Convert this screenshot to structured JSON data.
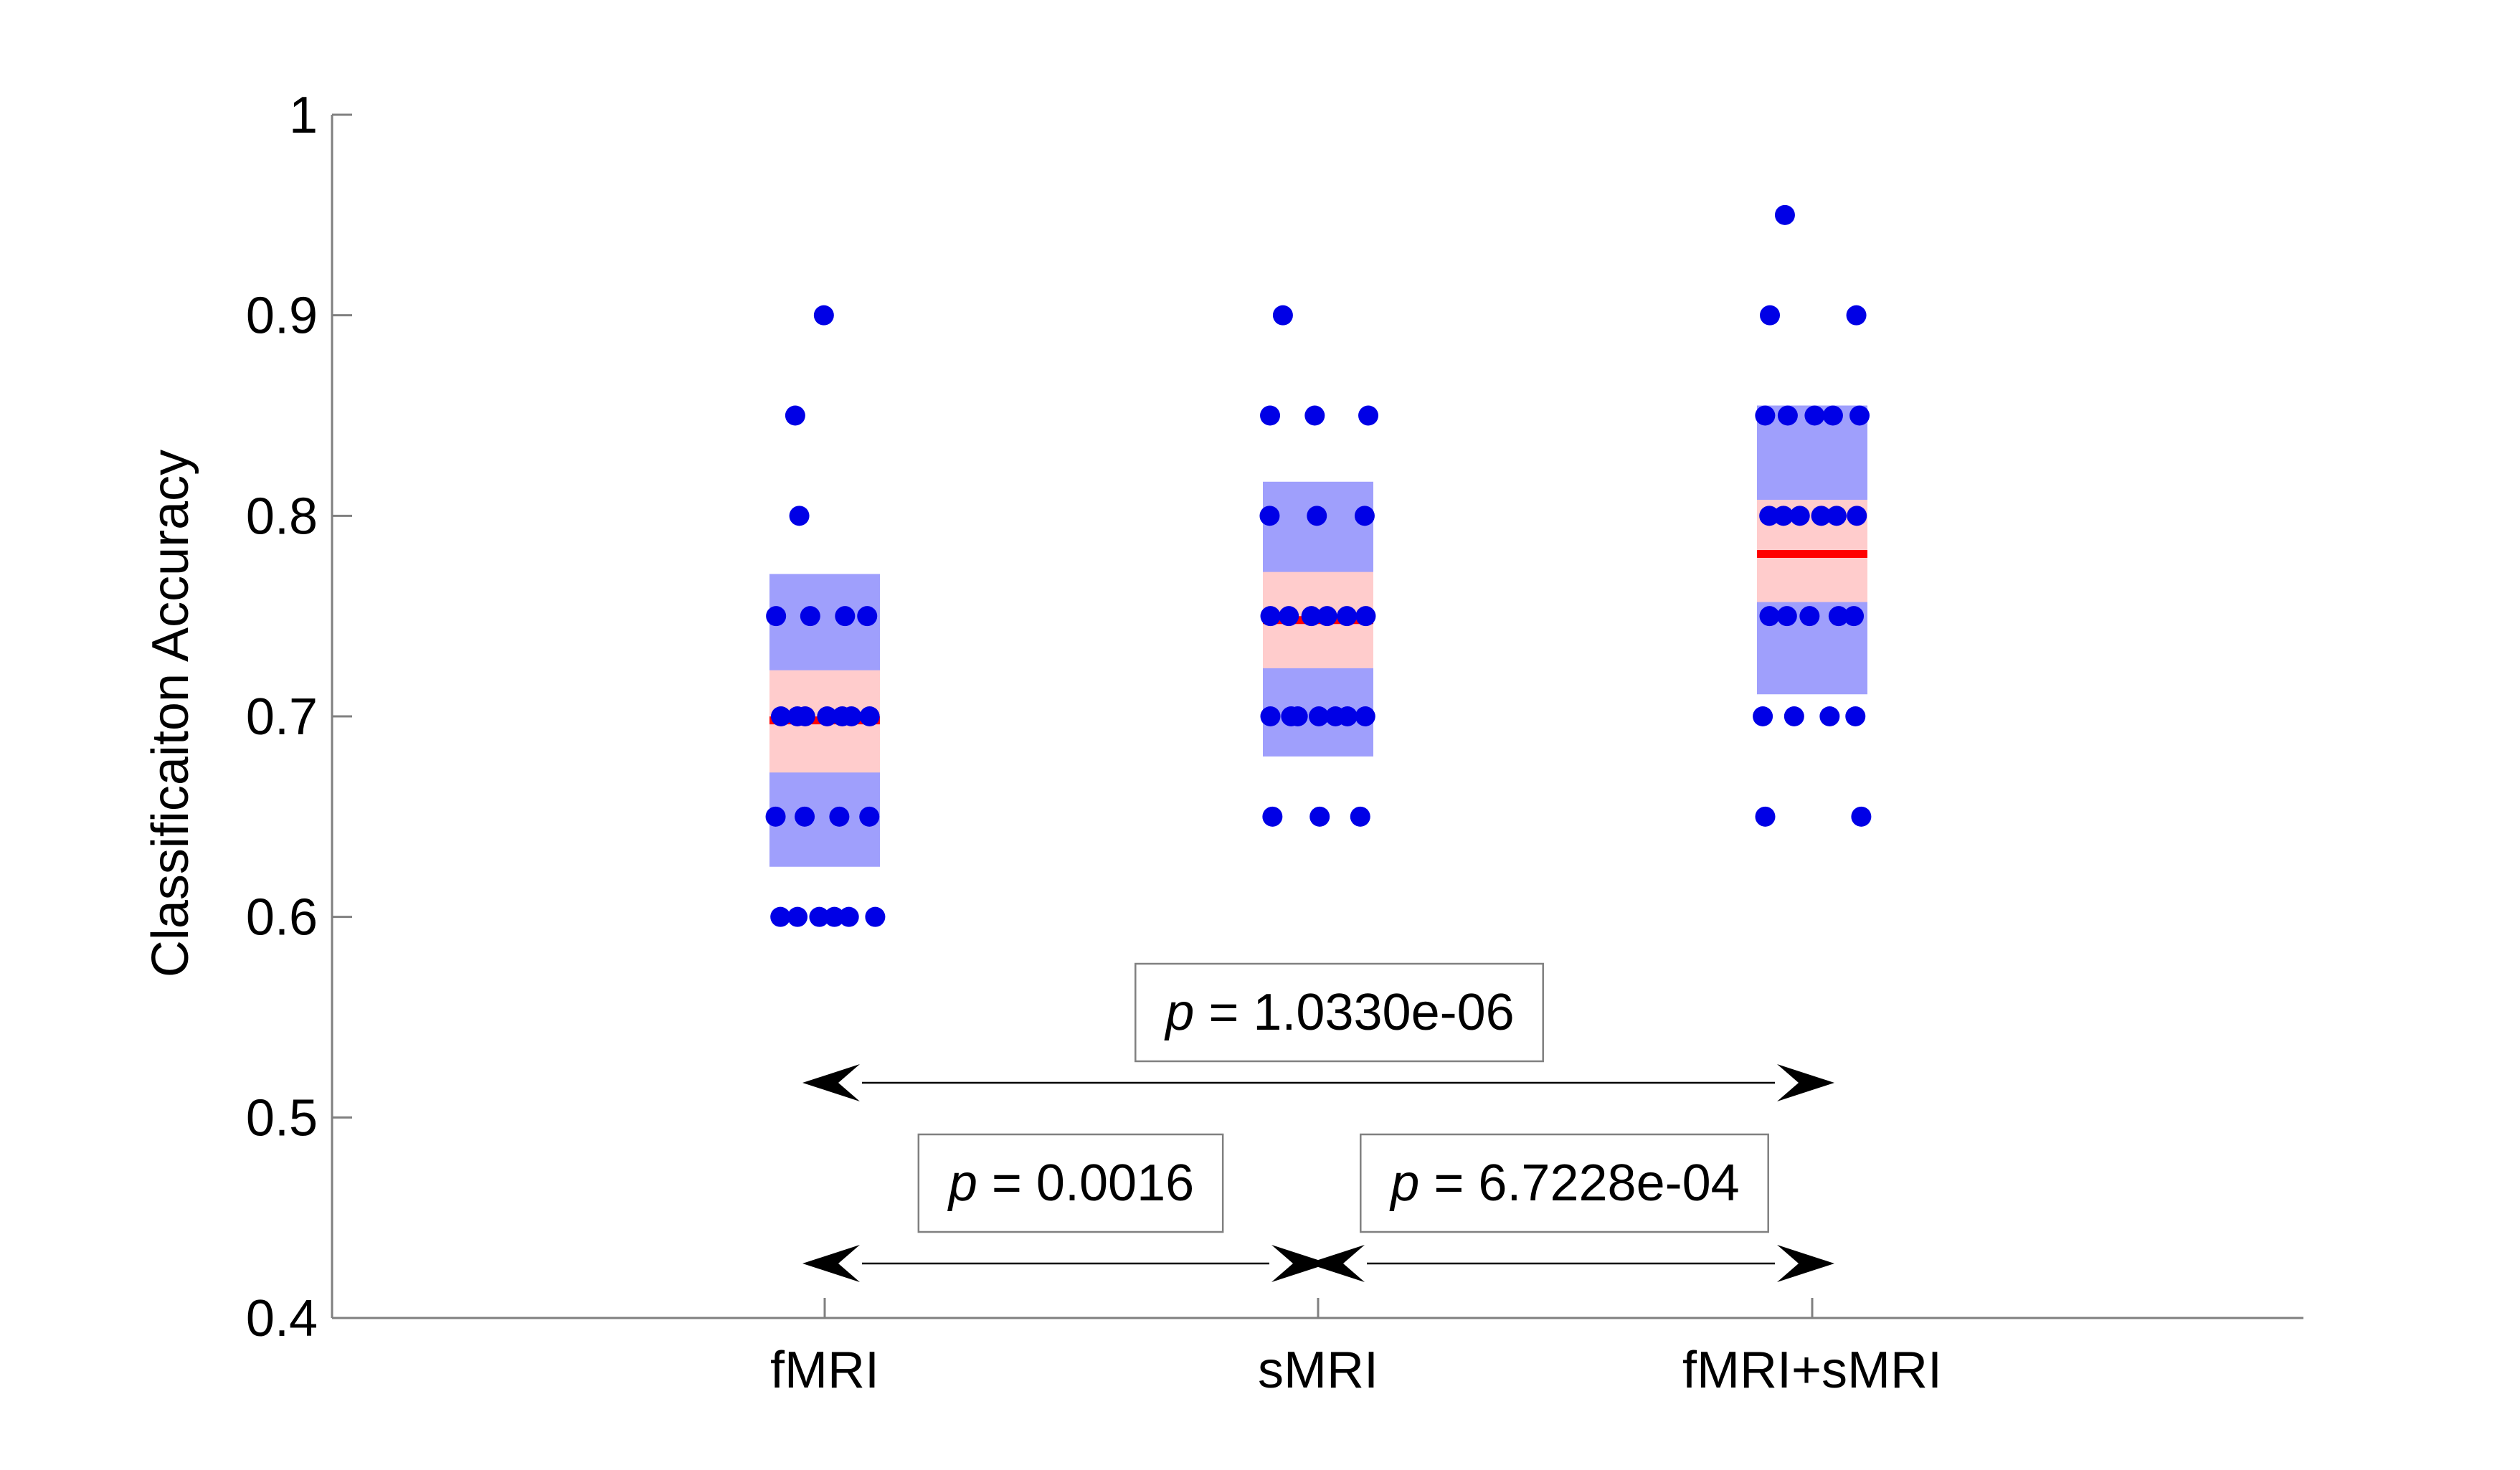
{
  "chart_data": {
    "type": "scatter",
    "title": "",
    "xlabel": "",
    "ylabel": "Classificaiton Accuracy",
    "ylim": [
      0.4,
      1.0
    ],
    "yticks": [
      "0.4",
      "0.5",
      "0.6",
      "0.7",
      "0.8",
      "0.9",
      "1"
    ],
    "categories": [
      "fMRI",
      "sMRI",
      "fMRI+sMRI"
    ],
    "groups": [
      {
        "category": "fMRI",
        "mean": 0.698,
        "sem_band": [
          0.672,
          0.723
        ],
        "sd_band": [
          0.625,
          0.771
        ],
        "points": [
          0.6,
          0.6,
          0.6,
          0.6,
          0.6,
          0.6,
          0.65,
          0.65,
          0.65,
          0.65,
          0.7,
          0.7,
          0.7,
          0.7,
          0.7,
          0.7,
          0.7,
          0.75,
          0.75,
          0.75,
          0.75,
          0.8,
          0.85,
          0.9
        ]
      },
      {
        "category": "sMRI",
        "mean": 0.748,
        "sem_band": [
          0.724,
          0.772
        ],
        "sd_band": [
          0.68,
          0.817
        ],
        "points": [
          0.65,
          0.65,
          0.65,
          0.7,
          0.7,
          0.7,
          0.7,
          0.7,
          0.7,
          0.7,
          0.75,
          0.75,
          0.75,
          0.75,
          0.75,
          0.75,
          0.8,
          0.8,
          0.8,
          0.85,
          0.85,
          0.85,
          0.9
        ]
      },
      {
        "category": "fMRI+sMRI",
        "mean": 0.781,
        "sem_band": [
          0.757,
          0.808
        ],
        "sd_band": [
          0.711,
          0.855
        ],
        "points": [
          0.65,
          0.65,
          0.7,
          0.7,
          0.7,
          0.7,
          0.75,
          0.75,
          0.75,
          0.75,
          0.75,
          0.8,
          0.8,
          0.8,
          0.8,
          0.8,
          0.8,
          0.85,
          0.85,
          0.85,
          0.85,
          0.85,
          0.9,
          0.9,
          0.95
        ]
      }
    ],
    "comparisons": [
      {
        "from": "fMRI",
        "to": "fMRI+sMRI",
        "p_symbol": "p",
        "p_text": " = 1.0330e-06",
        "level": "top"
      },
      {
        "from": "fMRI",
        "to": "sMRI",
        "p_symbol": "p",
        "p_text": " = 0.0016",
        "level": "bottom"
      },
      {
        "from": "sMRI",
        "to": "fMRI+sMRI",
        "p_symbol": "p",
        "p_text": " = 6.7228e-04",
        "level": "bottom"
      }
    ],
    "grid": false,
    "legend": "none",
    "colors": {
      "points": "#0000e6",
      "sd_band": "#9f9ffc",
      "sem_band": "#ffcccc",
      "mean_line": "#ff0000",
      "axis": "#808080"
    }
  }
}
